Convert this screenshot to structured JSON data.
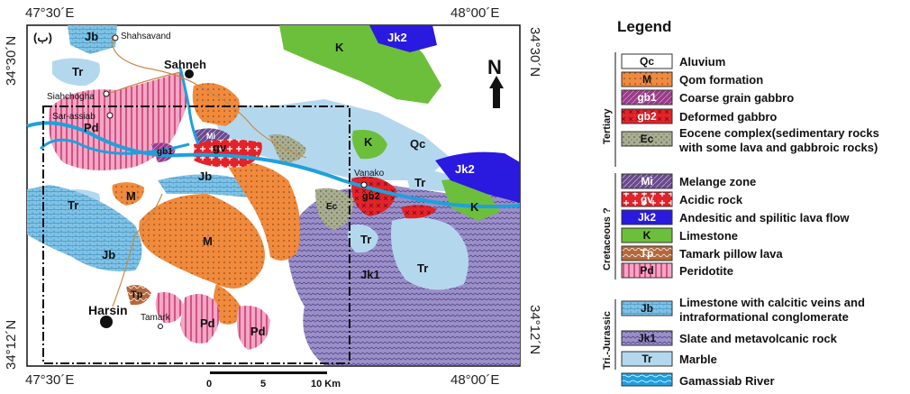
{
  "map": {
    "panel_label": "(ب)",
    "coords": {
      "top_left": "47°30´E",
      "top_right": "48°00´E",
      "bottom_left": "47°30´E",
      "bottom_right": "48°00´E",
      "left_top": "34°30´N",
      "left_bottom": "34°12´N",
      "right_top": "34°30´N",
      "right_bottom": "34°12´N"
    },
    "north_label": "N",
    "scale": {
      "zero": "0",
      "mid": "5",
      "end": "10 Km"
    },
    "towns": {
      "shahsavand": "Shahsavand",
      "sahneh": "Sahneh",
      "siahchogha": "Siahchogha",
      "sar_assiab": "Sar-assiab",
      "vanako": "Vanako",
      "harsin": "Harsin",
      "tamark": "Tamark"
    },
    "unit_labels": {
      "jb_top": "Jb",
      "tr_top": "Tr",
      "k_top": "K",
      "jk2_top": "Jk2",
      "pd_west": "Pd",
      "gb1": "gb1",
      "mi": "Mi",
      "gv": "gv",
      "jb_center": "Jb",
      "k_mid": "K",
      "qc": "Qc",
      "jk2_right": "Jk2",
      "tr_right": "Tr",
      "k_right": "K",
      "m_small": "M",
      "tr_left": "Tr",
      "ec": "Ec",
      "gb2": "gb2",
      "m_center": "M",
      "jb_sw": "Jb",
      "tr_mid": "Tr",
      "jk1": "Jk1",
      "tr_east": "Tr",
      "tp": "Tp",
      "pd_s1": "Pd",
      "pd_s2": "Pd"
    },
    "colors": {
      "alluvium": "#ffffff",
      "qom": "#f08a3c",
      "gb1": "#9b3a8a",
      "gb2": "#e3232a",
      "eocene": "#a9ae8f",
      "melange": "#6a4a8a",
      "acidic": "#e3232a",
      "jk2": "#2a1ae0",
      "limestone_k": "#6cbf3a",
      "tamark": "#a0522d",
      "peridotite": "#f3a7c6",
      "jb": "#7fc3e6",
      "jk1": "#9b8fc8",
      "marble": "#b3d8ee",
      "river": "#1fa0dd"
    }
  },
  "legend": {
    "title": "Legend",
    "groups": {
      "tertiary": "Tertiary",
      "cretaceous": "Cretaceous ?",
      "trijurassic": "Tri.-Jurassic"
    },
    "items": [
      {
        "code": "Qc",
        "text": "Aluvium"
      },
      {
        "code": "M",
        "text": "Qom formation"
      },
      {
        "code": "gb1",
        "text": "Coarse grain gabbro"
      },
      {
        "code": "gb2",
        "text": "Deformed gabbro"
      },
      {
        "code": "Ec",
        "text": "Eocene complex(sedimentary rocks",
        "text2": "with some lava and gabbroic rocks)"
      },
      {
        "code": "Mi",
        "text": "Melange zone"
      },
      {
        "code": "gv",
        "text": "Acidic rock"
      },
      {
        "code": "Jk2",
        "text": "Andesitic and spilitic lava flow"
      },
      {
        "code": "K",
        "text": "Limestone"
      },
      {
        "code": "Tp",
        "text": "Tamark pillow lava"
      },
      {
        "code": "Pd",
        "text": "Peridotite"
      },
      {
        "code": "Jb",
        "text": "Limestone with calcitic veins and",
        "text2": "intraformational conglomerate"
      },
      {
        "code": "Jk1",
        "text": "Slate and metavolcanic rock"
      },
      {
        "code": "Tr",
        "text": "Marble"
      },
      {
        "code": "",
        "text": "Gamassiab River"
      }
    ]
  }
}
